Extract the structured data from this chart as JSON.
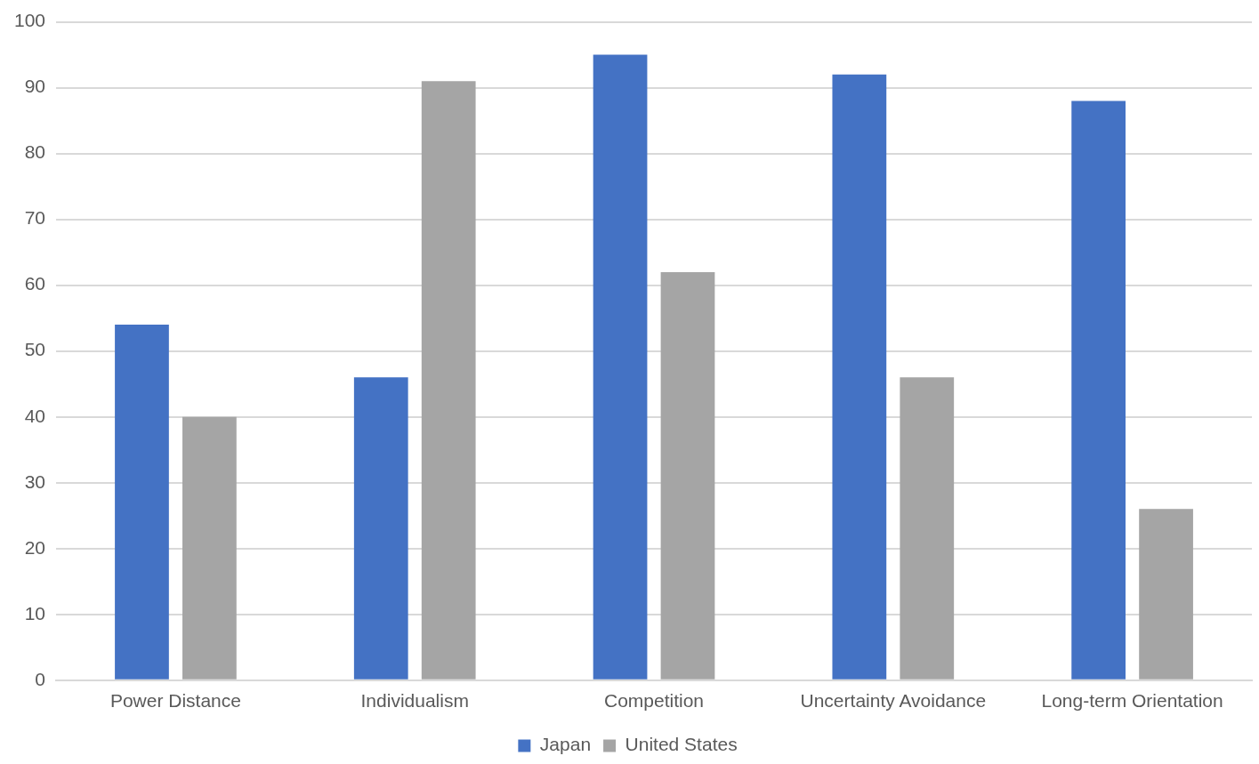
{
  "chart_data": {
    "type": "bar",
    "categories": [
      "Power Distance",
      "Individualism",
      "Competition",
      "Uncertainty Avoidance",
      "Long-term Orientation"
    ],
    "series": [
      {
        "name": "Japan",
        "color": "#4472c4",
        "values": [
          54,
          46,
          95,
          92,
          88
        ]
      },
      {
        "name": "United States",
        "color": "#a5a5a5",
        "values": [
          40,
          91,
          62,
          46,
          26
        ]
      }
    ],
    "ylim": [
      0,
      100
    ],
    "yticks": [
      0,
      10,
      20,
      30,
      40,
      50,
      60,
      70,
      80,
      90,
      100
    ],
    "grid": "y",
    "legend": "bottom"
  }
}
